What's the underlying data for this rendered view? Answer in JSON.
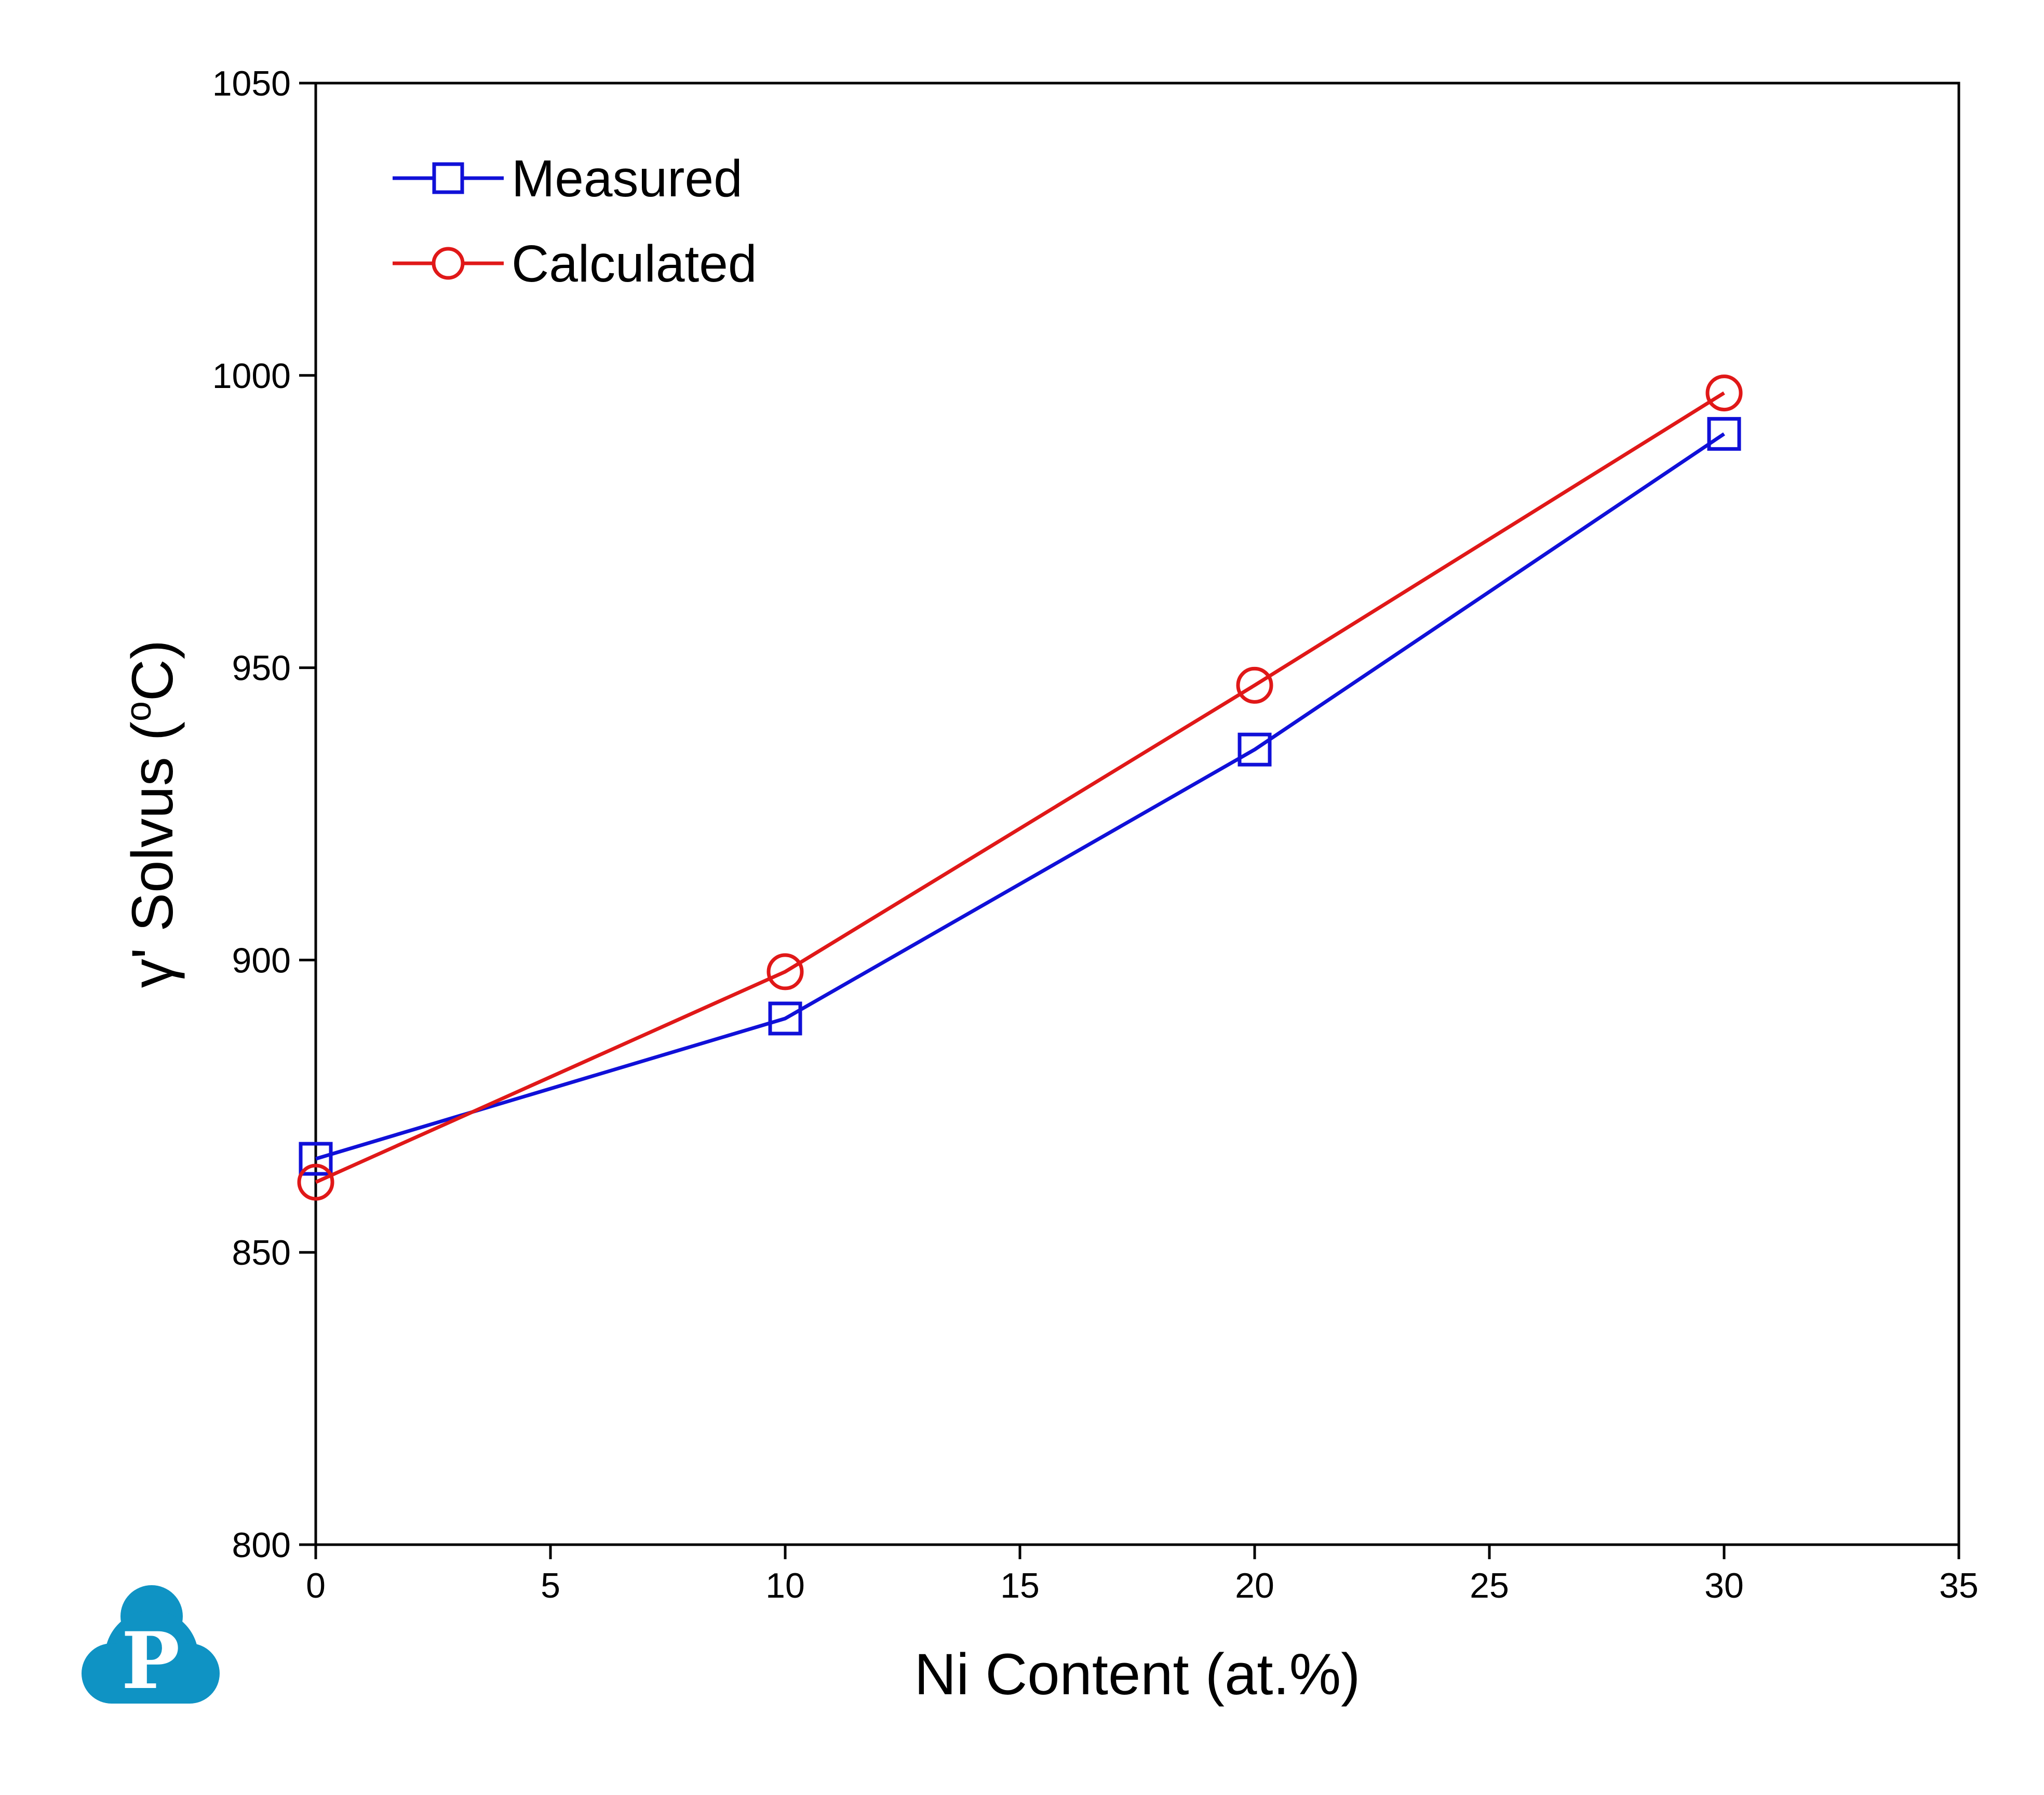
{
  "chart_data": {
    "type": "line",
    "title": "",
    "xlabel": "Ni Content (at.%)",
    "ylabel_main": "γ' Solvus (",
    "ylabel_sup": "o",
    "ylabel_tail": "C)",
    "xlim": [
      0,
      35
    ],
    "ylim": [
      800,
      1050
    ],
    "xticks": [
      0,
      5,
      10,
      15,
      20,
      25,
      30,
      35
    ],
    "yticks": [
      800,
      850,
      900,
      950,
      1000,
      1050
    ],
    "grid": false,
    "legend_position": "top-left",
    "series": [
      {
        "name": "Measured",
        "color": "#1010d8",
        "marker": "square",
        "x": [
          0,
          10,
          20,
          30
        ],
        "y": [
          866,
          890,
          936,
          990
        ]
      },
      {
        "name": "Calculated",
        "color": "#e01818",
        "marker": "circle",
        "x": [
          0,
          10,
          20,
          30
        ],
        "y": [
          862,
          898,
          947,
          997
        ]
      }
    ]
  },
  "logo": {
    "letter": "P",
    "color": "#0f93c4"
  }
}
